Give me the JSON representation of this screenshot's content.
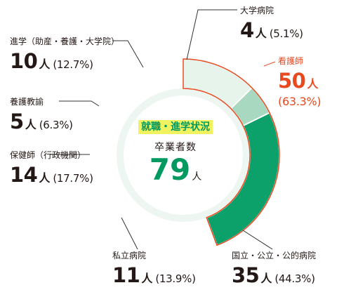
{
  "chart_data": {
    "type": "pie",
    "title": "就職・進学状況",
    "center": {
      "label": "卒業者数",
      "total": "79",
      "unit": "人"
    },
    "unit": "人",
    "slices": [
      {
        "name": "大学病院",
        "count": "4",
        "percent": "(5.1%)",
        "value": 4,
        "color": "#009a61"
      },
      {
        "name": "看護師",
        "count": "50",
        "percent": "(63.3%)",
        "value": 50,
        "color": "#e84a20",
        "outline": true
      },
      {
        "name": "国立・公立・公的病院",
        "count": "35",
        "percent": "(44.3%)",
        "value": 35,
        "color": "#0ca06a"
      },
      {
        "name": "私立病院",
        "count": "11",
        "percent": "(13.9%)",
        "value": 11,
        "color": "#6fc19b"
      },
      {
        "name": "保健師（行政機関）",
        "count": "14",
        "percent": "(17.7%)",
        "value": 14,
        "color": "#a8d8bf"
      },
      {
        "name": "養護教諭",
        "count": "5",
        "percent": "(6.3%)",
        "value": 5,
        "color": "#d3ecdf"
      },
      {
        "name": "進学（助産・養護・大学院）",
        "count": "10",
        "percent": "(12.7%)",
        "value": 10,
        "color": "#e6f4ec"
      }
    ]
  }
}
